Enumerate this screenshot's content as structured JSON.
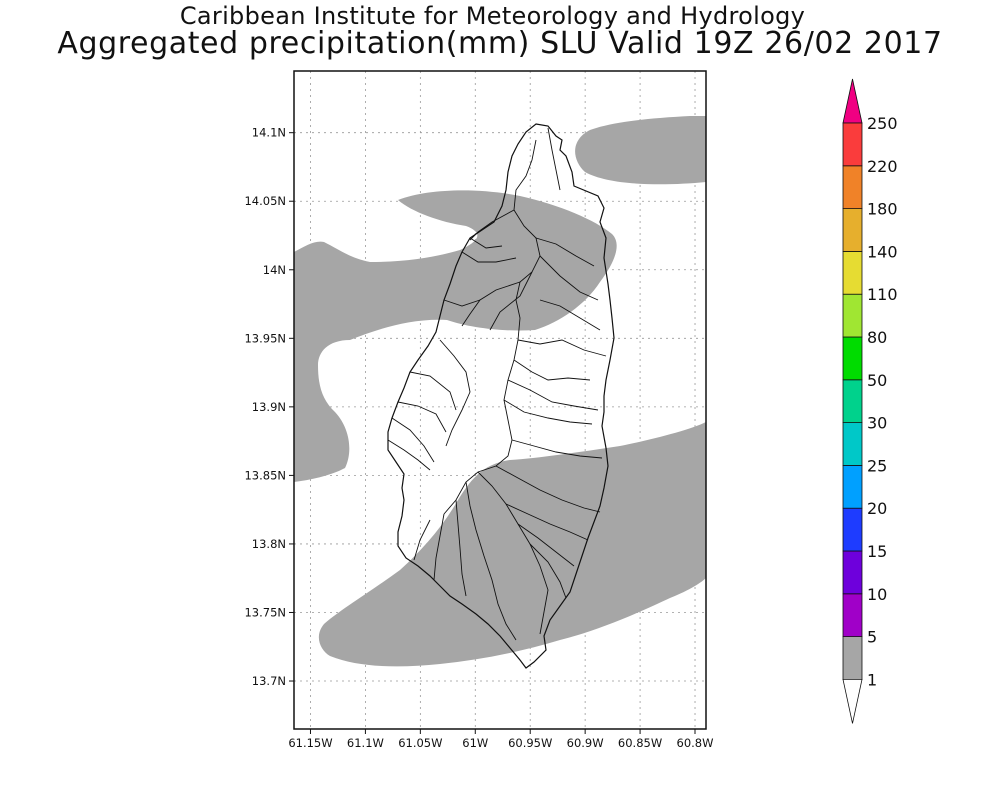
{
  "header": {
    "title": "Caribbean Institute for Meteorology and Hydrology",
    "subtitle": "Aggregated precipitation(mm) SLU Valid 19Z 26/02 2017"
  },
  "map": {
    "lon_range": [
      -61.165,
      -60.79
    ],
    "lat_range": [
      13.665,
      14.145
    ],
    "lat_ticks": [
      {
        "value": 14.1,
        "label": "14.1N"
      },
      {
        "value": 14.05,
        "label": "14.05N"
      },
      {
        "value": 14.0,
        "label": "14N"
      },
      {
        "value": 13.95,
        "label": "13.95N"
      },
      {
        "value": 13.9,
        "label": "13.9N"
      },
      {
        "value": 13.85,
        "label": "13.85N"
      },
      {
        "value": 13.8,
        "label": "13.8N"
      },
      {
        "value": 13.75,
        "label": "13.75N"
      },
      {
        "value": 13.7,
        "label": "13.7N"
      }
    ],
    "lon_ticks": [
      {
        "value": -61.15,
        "label": "61.15W"
      },
      {
        "value": -61.1,
        "label": "61.1W"
      },
      {
        "value": -61.05,
        "label": "61.05W"
      },
      {
        "value": -61.0,
        "label": "61W"
      },
      {
        "value": -60.95,
        "label": "60.95W"
      },
      {
        "value": -60.9,
        "label": "60.9W"
      },
      {
        "value": -60.85,
        "label": "60.85W"
      },
      {
        "value": -60.8,
        "label": "60.8W"
      }
    ],
    "grid": "dotted",
    "precip_fill_color": "#a6a6a6"
  },
  "colorbar": {
    "levels": [
      "1",
      "5",
      "10",
      "15",
      "20",
      "25",
      "30",
      "50",
      "80",
      "110",
      "140",
      "180",
      "220",
      "250"
    ],
    "colors": [
      "#a6a6a6",
      "#a000c8",
      "#6e00dc",
      "#1e3cff",
      "#00a0ff",
      "#00c8c8",
      "#00d28c",
      "#00dc00",
      "#a0e632",
      "#e6dc32",
      "#e6af2d",
      "#f08228",
      "#fa3c3c",
      "#f00082"
    ],
    "below_color": "#ffffff"
  }
}
